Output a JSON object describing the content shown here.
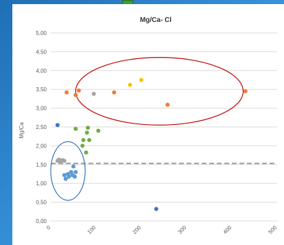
{
  "chart_data": {
    "type": "scatter",
    "title": "Mg/Ca- Cl",
    "ylabel": "Mg/Ca",
    "xlabel": "",
    "xlim": [
      0,
      500
    ],
    "ylim": [
      0,
      5
    ],
    "grid": true,
    "x_ticks": [
      "0",
      "100",
      "200",
      "300",
      "400",
      "500"
    ],
    "y_ticks": [
      "0,00",
      "0,50",
      "1,00",
      "1,50",
      "2,00",
      "2,50",
      "3,00",
      "3,50",
      "4,00",
      "4,50",
      "5,00"
    ],
    "reference_line": {
      "y": 1.53,
      "style": "dashed",
      "color": "#a6a6a6"
    },
    "series": [
      {
        "color": "#ed7d31",
        "points": [
          [
            35,
            3.42
          ],
          [
            55,
            3.35
          ],
          [
            62,
            3.47
          ],
          [
            140,
            3.42
          ],
          [
            258,
            3.09
          ],
          [
            430,
            3.45
          ]
        ]
      },
      {
        "color": "#ffc000",
        "points": [
          [
            175,
            3.62
          ],
          [
            200,
            3.75
          ]
        ]
      },
      {
        "color": "#a5a5a5",
        "points": [
          [
            95,
            3.38
          ],
          [
            15,
            1.6
          ],
          [
            18,
            1.63
          ],
          [
            22,
            1.58
          ],
          [
            26,
            1.62
          ],
          [
            30,
            1.6
          ]
        ]
      },
      {
        "color": "#4472c4",
        "points": [
          [
            15,
            2.55
          ],
          [
            233,
            0.32
          ]
        ]
      },
      {
        "color": "#70ad47",
        "points": [
          [
            55,
            2.45
          ],
          [
            82,
            2.48
          ],
          [
            105,
            2.4
          ],
          [
            80,
            2.35
          ],
          [
            72,
            2.15
          ],
          [
            85,
            2.15
          ],
          [
            70,
            2.0
          ],
          [
            78,
            1.82
          ]
        ]
      },
      {
        "color": "#5b9bd5",
        "points": [
          [
            30,
            1.22
          ],
          [
            38,
            1.25
          ],
          [
            50,
            1.45
          ],
          [
            45,
            1.3
          ],
          [
            55,
            1.3
          ],
          [
            48,
            1.22
          ],
          [
            53,
            1.18
          ],
          [
            40,
            1.18
          ],
          [
            33,
            1.12
          ]
        ]
      }
    ],
    "annotations": [
      {
        "shape": "ellipse",
        "color": "#c00000",
        "cx": 240,
        "cy": 3.45,
        "rx": 185,
        "ry": 0.9
      },
      {
        "shape": "ellipse",
        "color": "#2e75b6",
        "cx": 38,
        "cy": 1.33,
        "rx": 38,
        "ry": 0.78
      }
    ]
  }
}
